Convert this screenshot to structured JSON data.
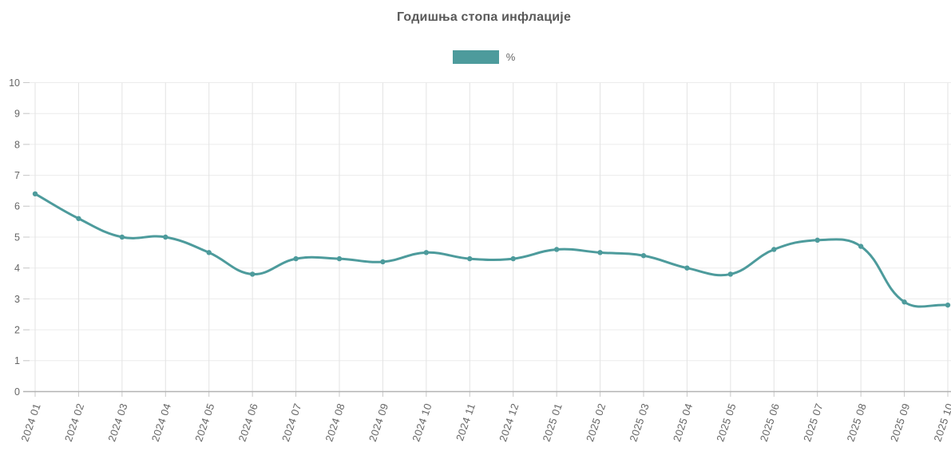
{
  "header": {
    "title": "Годишња стопа инфлације"
  },
  "legend": {
    "items": [
      {
        "label": "%",
        "color": "#4d9b9c"
      }
    ]
  },
  "chart_data": {
    "type": "line",
    "title": "Годишња стопа инфлације",
    "categories": [
      "2024 01",
      "2024 02",
      "2024 03",
      "2024 04",
      "2024 05",
      "2024 06",
      "2024 07",
      "2024 08",
      "2024 09",
      "2024 10",
      "2024 11",
      "2024 12",
      "2025 01",
      "2025 02",
      "2025 03",
      "2025 04",
      "2025 05",
      "2025 06",
      "2025 07",
      "2025 08",
      "2025 09",
      "2025 10"
    ],
    "series": [
      {
        "name": "%",
        "color": "#4d9b9c",
        "values": [
          6.4,
          5.6,
          5.0,
          5.0,
          4.5,
          3.8,
          4.3,
          4.3,
          4.2,
          4.5,
          4.3,
          4.3,
          4.6,
          4.5,
          4.4,
          4.0,
          3.8,
          4.6,
          4.9,
          4.7,
          2.9,
          2.8
        ]
      }
    ],
    "xlabel": "",
    "ylabel": "",
    "ylim": [
      0,
      10
    ],
    "yticks": [
      0,
      1,
      2,
      3,
      4,
      5,
      6,
      7,
      8,
      9,
      10
    ],
    "grid": true,
    "legend_position": "top-center",
    "x_tick_rotation_deg": -71,
    "smoothing": "spline-tension-0.4",
    "point_style": "circle",
    "axis_text_color": "#666666"
  }
}
